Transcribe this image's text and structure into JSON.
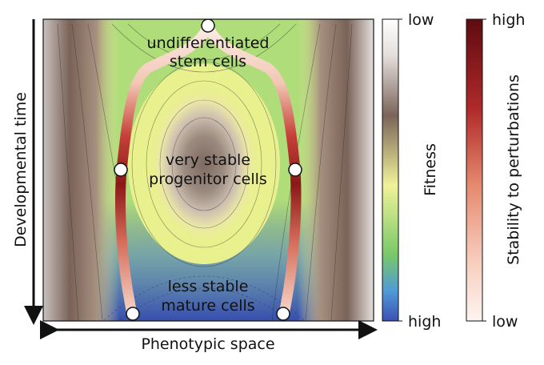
{
  "axes": {
    "y_label": "Developmental time",
    "x_label": "Phenotypic space"
  },
  "annotations": {
    "top_line1": "undifferentiated",
    "top_line2": "stem cells",
    "middle_line1": "very stable",
    "middle_line2": "progenitor cells",
    "bottom_line1": "less stable",
    "bottom_line2": "mature cells"
  },
  "fitness_colorbar": {
    "title": "Fitness",
    "top_label": "low",
    "bottom_label": "high"
  },
  "stability_colorbar": {
    "title": "Stability to perturbations",
    "top_label": "high",
    "bottom_label": "low"
  },
  "colors": {
    "fitness_high": "#3b50b4",
    "fitness_mid": "#7ac86a",
    "fitness_yellow": "#f1f29a",
    "fitness_brown": "#7b6459",
    "fitness_low": "#ffffff",
    "stability_high": "#6b0d12",
    "stability_mid": "#c9463a",
    "stability_low": "#fdf2ee"
  }
}
